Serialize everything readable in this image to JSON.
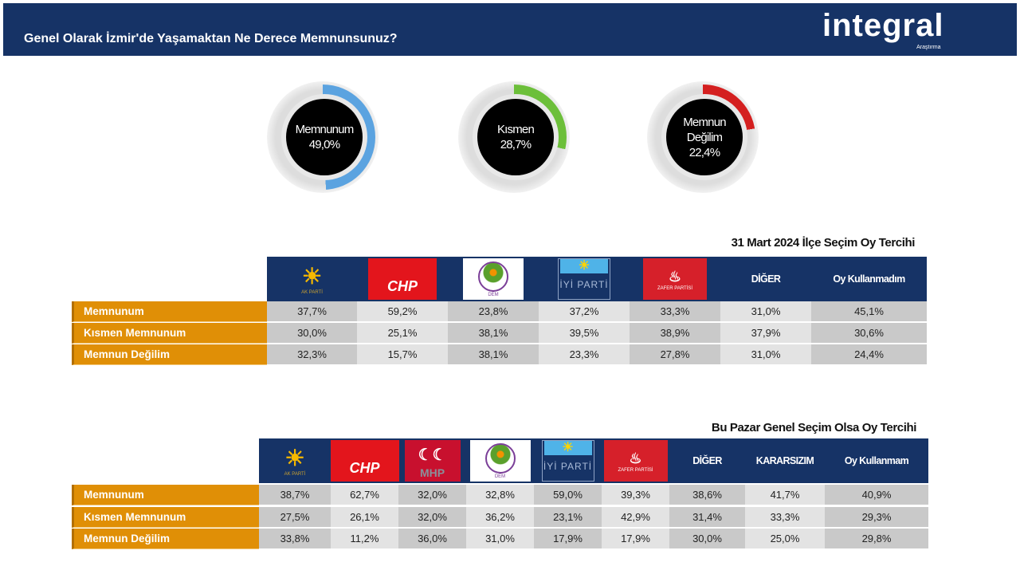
{
  "header": {
    "title": "Genel Olarak İzmir'de Yaşamaktan Ne Derece Memnunsunuz?",
    "logo": "integral",
    "logo_sub": "Araştırma"
  },
  "summary": [
    {
      "label": "Memnunum",
      "value": "49,0%",
      "pct": 49.0,
      "color": "#5ba3e0"
    },
    {
      "label": "Kısmen",
      "value": "28,7%",
      "pct": 28.7,
      "color": "#6cbf3a"
    },
    {
      "label": "Memnun Değilim",
      "value": "22,4%",
      "pct": 22.4,
      "color": "#d42020"
    }
  ],
  "chart_data": [
    {
      "type": "table",
      "title": "31 Mart 2024 İlçe Seçim Oy Tercihi",
      "columns": [
        "AK PARTİ",
        "CHP",
        "DEM",
        "İYİ PARTİ",
        "ZAFER PARTİSİ",
        "DİĞER",
        "Oy Kullanmadım"
      ],
      "rows": [
        {
          "label": "Memnunum",
          "values": [
            "37,7%",
            "59,2%",
            "23,8%",
            "37,2%",
            "33,3%",
            "31,0%",
            "45,1%"
          ]
        },
        {
          "label": "Kısmen Memnunum",
          "values": [
            "30,0%",
            "25,1%",
            "38,1%",
            "39,5%",
            "38,9%",
            "37,9%",
            "30,6%"
          ]
        },
        {
          "label": "Memnun Değilim",
          "values": [
            "32,3%",
            "15,7%",
            "38,1%",
            "23,3%",
            "27,8%",
            "31,0%",
            "24,4%"
          ]
        }
      ]
    },
    {
      "type": "table",
      "title": "Bu Pazar Genel Seçim Olsa Oy Tercihi",
      "columns": [
        "AK PARTİ",
        "CHP",
        "MHP",
        "DEM",
        "İYİ PARTİ",
        "ZAFER PARTİSİ",
        "DİĞER",
        "KARARSIZIM",
        "Oy Kullanmam"
      ],
      "rows": [
        {
          "label": "Memnunum",
          "values": [
            "38,7%",
            "62,7%",
            "32,0%",
            "32,8%",
            "59,0%",
            "39,3%",
            "38,6%",
            "41,7%",
            "40,9%"
          ]
        },
        {
          "label": "Kısmen Memnunum",
          "values": [
            "27,5%",
            "26,1%",
            "32,0%",
            "36,2%",
            "23,1%",
            "42,9%",
            "31,4%",
            "33,3%",
            "29,3%"
          ]
        },
        {
          "label": "Memnun Değilim",
          "values": [
            "33,8%",
            "11,2%",
            "36,0%",
            "31,0%",
            "17,9%",
            "17,9%",
            "30,0%",
            "25,0%",
            "29,8%"
          ]
        }
      ]
    }
  ]
}
